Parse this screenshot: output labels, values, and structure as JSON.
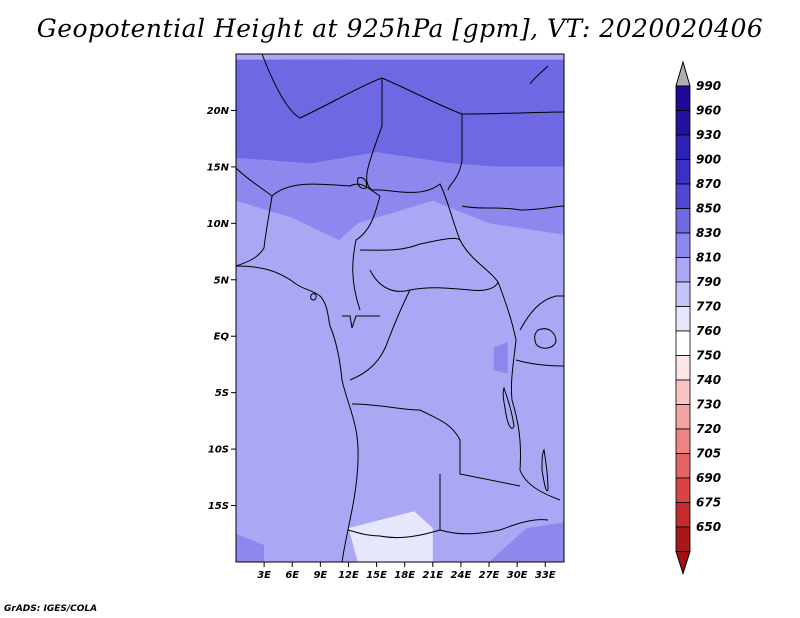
{
  "title": "Geopotential Height at 925hPa [gpm], VT: 2020020406",
  "credit": "GrADS: IGES/COLA",
  "map": {
    "lon_range": [
      0,
      35
    ],
    "lat_range": [
      -20,
      25
    ],
    "lat_ticks": [
      {
        "value": 20,
        "label": "20N"
      },
      {
        "value": 15,
        "label": "15N"
      },
      {
        "value": 10,
        "label": "10N"
      },
      {
        "value": 5,
        "label": "5N"
      },
      {
        "value": 0,
        "label": "EQ"
      },
      {
        "value": -5,
        "label": "5S"
      },
      {
        "value": -10,
        "label": "10S"
      },
      {
        "value": -15,
        "label": "15S"
      }
    ],
    "lon_ticks": [
      {
        "value": 3,
        "label": "3E"
      },
      {
        "value": 6,
        "label": "6E"
      },
      {
        "value": 9,
        "label": "9E"
      },
      {
        "value": 12,
        "label": "12E"
      },
      {
        "value": 15,
        "label": "15E"
      },
      {
        "value": 18,
        "label": "18E"
      },
      {
        "value": 21,
        "label": "21E"
      },
      {
        "value": 24,
        "label": "24E"
      },
      {
        "value": 27,
        "label": "27E"
      },
      {
        "value": 30,
        "label": "30E"
      },
      {
        "value": 33,
        "label": "33E"
      }
    ]
  },
  "colorbar": {
    "levels": [
      {
        "label": "990",
        "color": "#1e0a96"
      },
      {
        "label": "960",
        "color": "#24129e"
      },
      {
        "label": "930",
        "color": "#2e22b2"
      },
      {
        "label": "900",
        "color": "#3a30c2"
      },
      {
        "label": "870",
        "color": "#5048d2"
      },
      {
        "label": "850",
        "color": "#6e68e2"
      },
      {
        "label": "830",
        "color": "#8c88ee"
      },
      {
        "label": "810",
        "color": "#aaa8f4"
      },
      {
        "label": "790",
        "color": "#c4c4f8"
      },
      {
        "label": "770",
        "color": "#e6e6fd"
      },
      {
        "label": "760",
        "color": "#ffffff"
      },
      {
        "label": "750",
        "color": "#fde6e6"
      },
      {
        "label": "740",
        "color": "#f8c4c4"
      },
      {
        "label": "730",
        "color": "#f2a4a4"
      },
      {
        "label": "720",
        "color": "#ec8484"
      },
      {
        "label": "705",
        "color": "#e46464"
      },
      {
        "label": "690",
        "color": "#d84444"
      },
      {
        "label": "675",
        "color": "#c42c2c"
      },
      {
        "label": "650",
        "color": "#a81818"
      }
    ],
    "top_arrow_color": "#b0b0b0",
    "bottom_arrow_color": "#a01010"
  },
  "chart_data": {
    "type": "heatmap",
    "title": "Geopotential Height at 925hPa [gpm], VT: 2020020406",
    "x_range": [
      0,
      35
    ],
    "y_range": [
      -20,
      25
    ],
    "regions": [
      {
        "id": "far-north-max",
        "level": "870",
        "polygon": [
          [
            5,
            24.5
          ],
          [
            12,
            24.5
          ],
          [
            10,
            22
          ],
          [
            6,
            22.5
          ]
        ]
      },
      {
        "id": "north-band",
        "level": "850",
        "polygon": [
          [
            0,
            24.5
          ],
          [
            35,
            24.5
          ],
          [
            35,
            15
          ],
          [
            28,
            15
          ],
          [
            23,
            15.3
          ],
          [
            15,
            16.3
          ],
          [
            8,
            15.3
          ],
          [
            0,
            15.8
          ]
        ]
      },
      {
        "id": "mid-band",
        "level": "830",
        "polygon": [
          [
            0,
            15.8
          ],
          [
            8,
            15.3
          ],
          [
            15,
            16.3
          ],
          [
            23,
            15.3
          ],
          [
            28,
            15
          ],
          [
            35,
            15
          ],
          [
            35,
            9
          ],
          [
            27,
            10
          ],
          [
            21,
            12
          ],
          [
            13,
            10
          ],
          [
            11,
            8.5
          ],
          [
            6,
            10.5
          ],
          [
            0,
            12
          ]
        ]
      },
      {
        "id": "south-patch",
        "level": "770",
        "polygon": [
          [
            12,
            -17
          ],
          [
            19,
            -15.5
          ],
          [
            21,
            -17
          ],
          [
            21,
            -20
          ],
          [
            13,
            -20
          ]
        ]
      },
      {
        "id": "se-patch",
        "level": "830",
        "polygon": [
          [
            27,
            -20
          ],
          [
            35,
            -20
          ],
          [
            35,
            -16.5
          ],
          [
            31,
            -17
          ]
        ]
      },
      {
        "id": "sw-corner",
        "level": "830",
        "polygon": [
          [
            0,
            -17.5
          ],
          [
            3,
            -18.5
          ],
          [
            3,
            -20
          ],
          [
            0,
            -20
          ]
        ]
      },
      {
        "id": "rift-patch",
        "level": "830",
        "polygon": [
          [
            27.5,
            -1
          ],
          [
            29,
            -0.5
          ],
          [
            29,
            -3.3
          ],
          [
            27.5,
            -3
          ]
        ]
      }
    ],
    "background_level": "810"
  }
}
